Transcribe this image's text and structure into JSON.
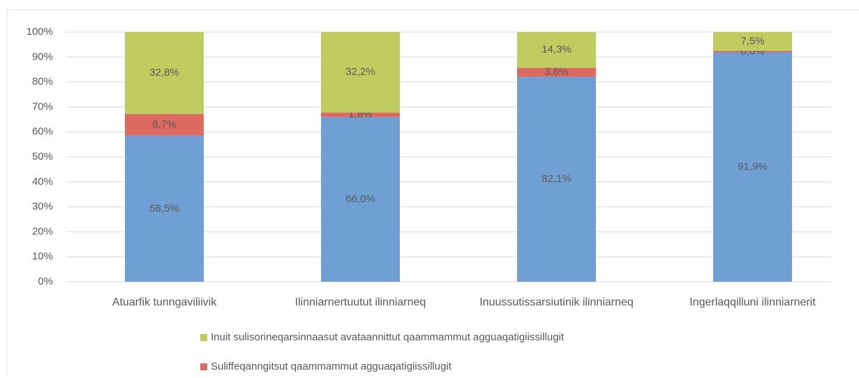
{
  "chart_data": {
    "type": "stacked_bar",
    "categories": [
      "Atuarfik tunngaviliivik",
      "Ilinniarnertuutut ilinniarneq",
      "Inuussutissarsiutinik ilinniarneq",
      "Ingerlaqqilluni ilinniarnerit"
    ],
    "series": [
      {
        "color": "#6f9fd3",
        "values": [
          58.5,
          66.0,
          82.1,
          91.9
        ],
        "value_labels": [
          "58,5%",
          "66,0%",
          "82,1%",
          "91,9%"
        ]
      },
      {
        "name": "Suliffeqanngitsut qaammammut agguaqatigiissillugit",
        "color": "#dd6a60",
        "values": [
          8.7,
          1.8,
          3.6,
          0.6
        ],
        "value_labels": [
          "8,7%",
          "1,8%",
          "3,6%",
          "0,6%"
        ]
      },
      {
        "name": "Inuit sulisorineqarsinnaasut avataannittut qaammammut agguaqatigiissillugit",
        "color": "#bfcc60",
        "values": [
          32.8,
          32.2,
          14.3,
          7.5
        ],
        "value_labels": [
          "32,8%",
          "32,2%",
          "14,3%",
          "7,5%"
        ]
      }
    ],
    "ylim": [
      0,
      100
    ],
    "yticks": [
      {
        "value": 0,
        "label": "0%"
      },
      {
        "value": 10,
        "label": "10%"
      },
      {
        "value": 20,
        "label": "20%"
      },
      {
        "value": 30,
        "label": "30%"
      },
      {
        "value": 40,
        "label": "40%"
      },
      {
        "value": 50,
        "label": "50%"
      },
      {
        "value": 60,
        "label": "60%"
      },
      {
        "value": 70,
        "label": "70%"
      },
      {
        "value": 80,
        "label": "80%"
      },
      {
        "value": 90,
        "label": "90%"
      },
      {
        "value": 100,
        "label": "100%"
      }
    ],
    "grid": true
  }
}
